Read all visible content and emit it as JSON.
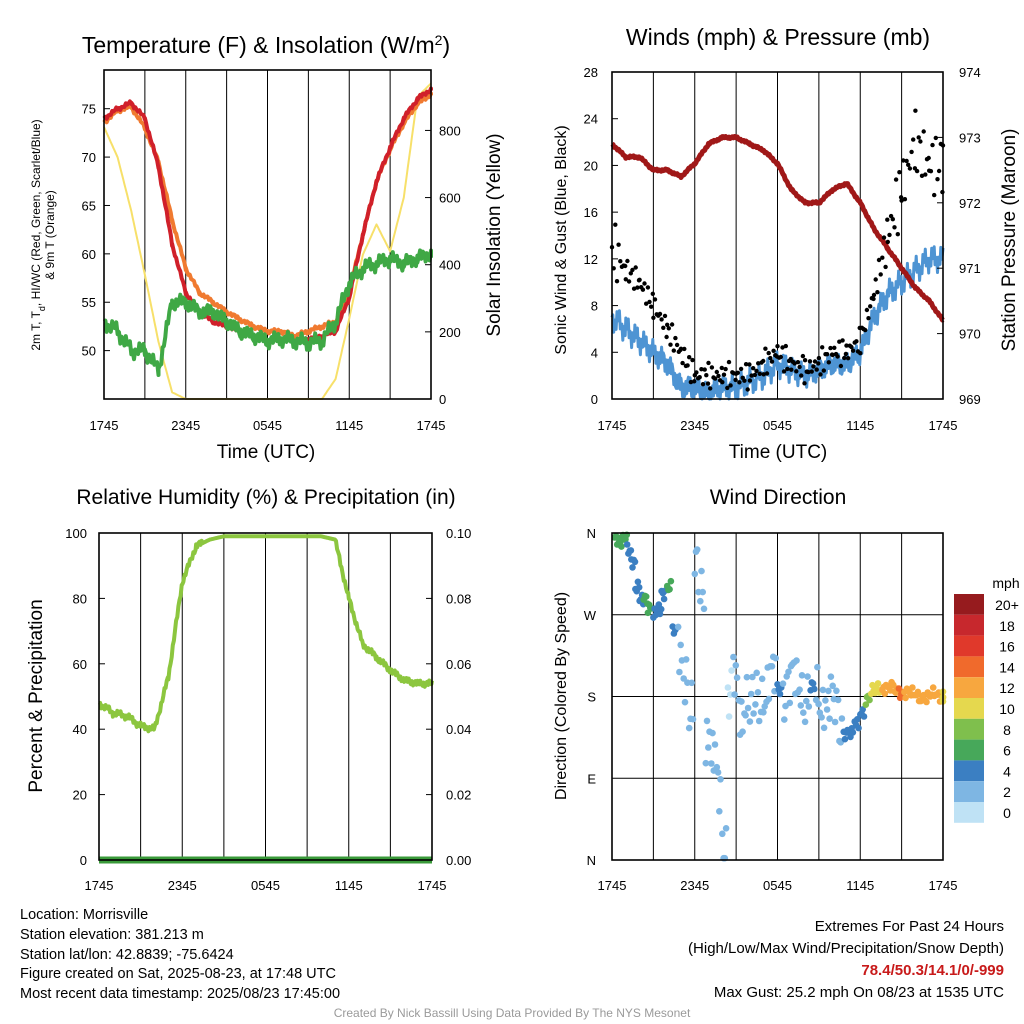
{
  "colors": {
    "red": "#d0202a",
    "orange": "#f07a30",
    "green": "#3fa845",
    "yellow": "#f7e06a",
    "sonic_blue": "#4e94d3",
    "gust_black": "#000000",
    "pressure_maroon": "#a01818",
    "rh_green": "#8cc63f"
  },
  "chart_data": [
    {
      "type": "line",
      "title": "Temperature (F) & Insolation (W/m²)",
      "xlabel": "Time (UTC)",
      "ylabel": "2m T, Td, HI/WC (Red, Green, Scarlet/Blue) & 9m T (Orange)",
      "y2label": "Solar Insolation (Yellow)",
      "x_ticks": [
        "1745",
        "2345",
        "0545",
        "1145",
        "1745"
      ],
      "ylim": [
        45,
        79
      ],
      "y_ticks": [
        "50",
        "55",
        "60",
        "65",
        "70",
        "75"
      ],
      "y2lim": [
        0,
        980
      ],
      "y2_ticks": [
        "0",
        "200",
        "400",
        "600",
        "800"
      ],
      "x_hours": [
        0,
        1,
        2,
        3,
        4,
        5,
        6,
        7,
        8,
        9,
        10,
        11,
        12,
        13,
        14,
        15,
        16,
        17,
        18,
        19,
        20,
        21,
        22,
        23,
        24
      ],
      "series": [
        {
          "name": "2m T",
          "values": [
            74,
            75,
            75.6,
            74,
            69,
            61,
            56,
            54,
            53,
            52.5,
            52,
            51.5,
            51,
            51.2,
            51,
            51.2,
            51.5,
            52,
            55.5,
            62,
            67.5,
            71,
            74,
            76,
            77
          ]
        },
        {
          "name": "9m T",
          "values": [
            73.6,
            74.8,
            75.2,
            73,
            69.5,
            63.5,
            58.5,
            56,
            55,
            54,
            53.2,
            52.5,
            52,
            52,
            51.5,
            52,
            52.5,
            53,
            56,
            62,
            67.5,
            70.8,
            73.5,
            75.5,
            76.5
          ]
        },
        {
          "name": "Td",
          "values": [
            53,
            52,
            50,
            50,
            48,
            55,
            55,
            54,
            54,
            53,
            52,
            51.5,
            51,
            51.2,
            51,
            50.8,
            51,
            53,
            57,
            58.5,
            59,
            59.5,
            59,
            59.5,
            60
          ]
        },
        {
          "name": "Solar Insolation",
          "values": [
            810,
            720,
            560,
            370,
            170,
            20,
            0,
            0,
            0,
            0,
            0,
            0,
            0,
            0,
            0,
            0,
            0,
            60,
            240,
            430,
            520,
            440,
            600,
            900,
            940
          ]
        }
      ]
    },
    {
      "type": "line",
      "title": "Winds (mph) & Pressure (mb)",
      "xlabel": "Time (UTC)",
      "ylabel": "Sonic Wind & Gust (Blue, Black)",
      "y2label": "Station Pressure (Maroon)",
      "x_ticks": [
        "1745",
        "2345",
        "0545",
        "1145",
        "1745"
      ],
      "ylim": [
        0,
        28
      ],
      "y_ticks": [
        "0",
        "4",
        "8",
        "12",
        "16",
        "20",
        "24",
        "28"
      ],
      "y2lim": [
        969,
        974
      ],
      "y2_ticks": [
        "969",
        "970",
        "971",
        "972",
        "973",
        "974"
      ],
      "x_hours": [
        0,
        1,
        2,
        3,
        4,
        5,
        6,
        7,
        8,
        9,
        10,
        11,
        12,
        13,
        14,
        15,
        16,
        17,
        18,
        19,
        20,
        21,
        22,
        23,
        24
      ],
      "series": [
        {
          "name": "Sonic Wind",
          "values": [
            7,
            6,
            5,
            4,
            3,
            1,
            1,
            0.5,
            1,
            1,
            1.5,
            2,
            3,
            2.5,
            2,
            2.5,
            3,
            3,
            4,
            7,
            9,
            10,
            11,
            12,
            12
          ]
        },
        {
          "name": "Gust",
          "values": [
            13,
            11,
            10,
            8,
            6,
            4,
            2,
            2,
            2,
            2,
            2,
            3,
            4,
            3,
            2.5,
            3,
            4,
            4,
            5,
            9,
            14,
            18,
            22,
            20,
            20
          ]
        },
        {
          "name": "Station Pressure",
          "values": [
            972.9,
            972.7,
            972.7,
            972.5,
            972.5,
            972.4,
            972.6,
            972.9,
            973.0,
            973.0,
            972.9,
            972.8,
            972.6,
            972.2,
            972.0,
            972.0,
            972.2,
            972.3,
            972.0,
            971.6,
            971.3,
            971.0,
            970.7,
            970.5,
            970.2
          ]
        }
      ]
    },
    {
      "type": "line",
      "title": "Relative Humidity (%) & Precipitation (in)",
      "ylabel": "Percent & Precipitation",
      "x_ticks": [
        "1745",
        "2345",
        "0545",
        "1145",
        "1745"
      ],
      "ylim": [
        0,
        100
      ],
      "y_ticks": [
        "0",
        "20",
        "40",
        "60",
        "80",
        "100"
      ],
      "y2lim": [
        0,
        0.1
      ],
      "y2_ticks": [
        "0.00",
        "0.02",
        "0.04",
        "0.06",
        "0.08",
        "0.10"
      ],
      "x_hours": [
        0,
        1,
        2,
        3,
        4,
        5,
        6,
        7,
        8,
        9,
        10,
        11,
        12,
        13,
        14,
        15,
        16,
        17,
        18,
        19,
        20,
        21,
        22,
        23,
        24
      ],
      "series": [
        {
          "name": "Relative Humidity",
          "values": [
            48,
            45,
            44,
            41,
            40,
            56,
            85,
            96,
            98,
            99,
            99,
            99,
            99,
            99,
            99,
            99,
            99,
            98,
            80,
            66,
            62,
            58,
            55,
            54,
            54
          ]
        },
        {
          "name": "Precipitation",
          "values": [
            0,
            0,
            0,
            0,
            0,
            0,
            0,
            0,
            0,
            0,
            0,
            0,
            0,
            0,
            0,
            0,
            0,
            0,
            0,
            0,
            0,
            0,
            0,
            0,
            0
          ]
        }
      ]
    },
    {
      "type": "scatter",
      "title": "Wind Direction",
      "ylabel": "Direction (Colored By Speed)",
      "x_ticks": [
        "1745",
        "2345",
        "0545",
        "1145",
        "1745"
      ],
      "y_ticks": [
        "N",
        "E",
        "S",
        "W",
        "N"
      ],
      "ylim": [
        0,
        360
      ],
      "colorbar": {
        "unit": "mph",
        "labels": [
          "20+",
          "18",
          "16",
          "14",
          "12",
          "10",
          "8",
          "6",
          "4",
          "2",
          "0"
        ],
        "colors": [
          "#961b1e",
          "#c7282d",
          "#e0392b",
          "#f06a2c",
          "#f7a73f",
          "#e5d84e",
          "#7fbf4d",
          "#47a85a",
          "#3b7fc2",
          "#7eb6e3",
          "#bfe2f5"
        ]
      },
      "x_hours": [
        0.2,
        0.5,
        0.8,
        1.1,
        1.4,
        1.7,
        2.0,
        2.3,
        2.6,
        3.0,
        3.3,
        3.6,
        4.0,
        4.4,
        4.8,
        5.2,
        5.6,
        6.0,
        6.4,
        6.8,
        7.2,
        7.6,
        8.0,
        8.4,
        8.8,
        9.2,
        9.6,
        10.0,
        10.4,
        10.8,
        11.2,
        11.6,
        12.0,
        12.4,
        12.8,
        13.2,
        13.6,
        14.0,
        14.4,
        14.8,
        15.2,
        15.6,
        16.0,
        16.4,
        16.8,
        17.2,
        17.6,
        18.0,
        18.4,
        18.8,
        19.2,
        19.6,
        20.0,
        20.4,
        20.8,
        21.2,
        21.6,
        22.0,
        22.4,
        22.8,
        23.2,
        23.6,
        24.0
      ],
      "directions": [
        355,
        350,
        352,
        340,
        330,
        300,
        285,
        290,
        280,
        270,
        275,
        295,
        300,
        250,
        230,
        210,
        160,
        320,
        310,
        140,
        105,
        80,
        20,
        175,
        190,
        165,
        185,
        170,
        180,
        190,
        195,
        195,
        188,
        185,
        190,
        192,
        195,
        185,
        190,
        185,
        180,
        170,
        160,
        150,
        140,
        138,
        150,
        165,
        178,
        185,
        190,
        190,
        188,
        185,
        185,
        185,
        182,
        182,
        182,
        180,
        182,
        182,
        180
      ],
      "speeds": [
        6,
        6,
        5,
        4,
        4,
        4,
        4,
        5,
        6,
        4,
        3,
        4,
        5,
        3,
        2,
        2,
        1,
        1,
        2,
        1,
        2,
        1,
        1,
        0,
        1,
        2,
        2,
        2,
        2,
        2,
        2,
        2,
        3,
        2,
        2,
        2,
        2,
        2,
        3,
        2,
        2,
        2,
        2,
        2,
        3,
        4,
        4,
        4,
        7,
        9,
        10,
        11,
        12,
        12,
        13,
        12,
        11,
        12,
        12,
        12,
        11,
        11,
        10
      ]
    }
  ],
  "station": {
    "location": "Location: Morrisville",
    "elevation": "Station elevation: 381.213 m",
    "latlon": "Station lat/lon: 42.8839; -75.6424",
    "created": "Figure created on Sat, 2025-08-23, at 17:48 UTC",
    "recent": "Most recent data timestamp: 2025/08/23 17:45:00"
  },
  "extremes": {
    "title": "Extremes For Past 24 Hours",
    "subtitle": "(High/Low/Max Wind/Precipitation/Snow Depth)",
    "values": "78.4/50.3/14.1/0/-999",
    "gust": "Max Gust: 25.2 mph On 08/23 at 1535 UTC"
  },
  "credit": "Created By Nick Bassill Using Data Provided By The NYS Mesonet"
}
